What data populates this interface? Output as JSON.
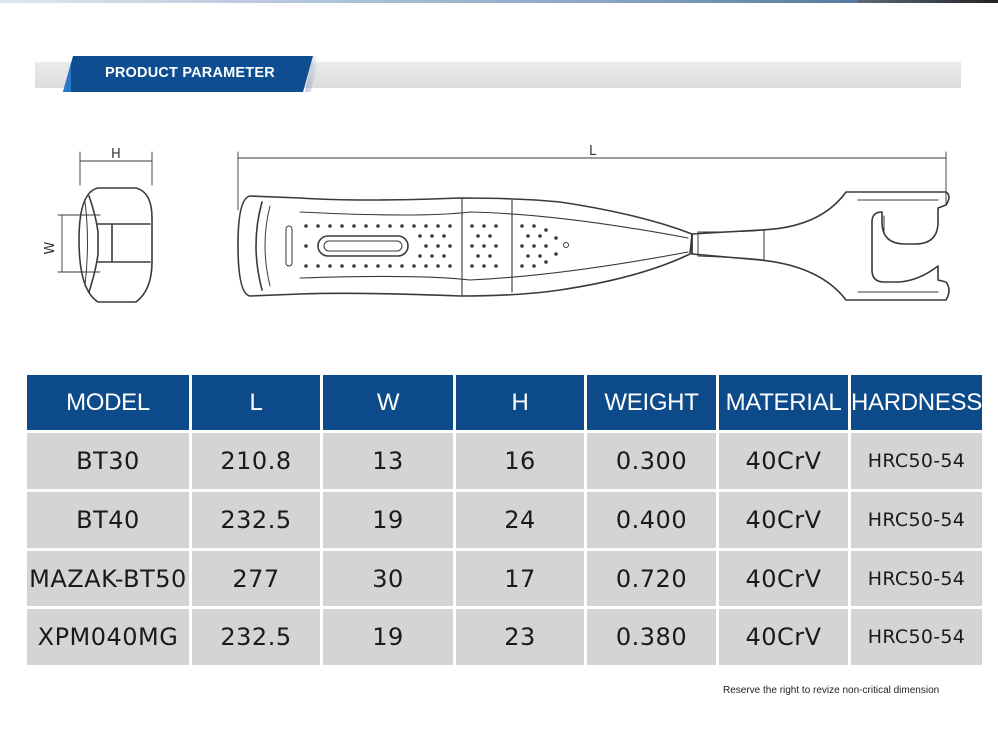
{
  "section": {
    "title": "PRODUCT PARAMETER"
  },
  "drawing": {
    "side_view_labels": {
      "h": "H",
      "w": "W"
    },
    "front_view_labels": {
      "l": "L"
    }
  },
  "table": {
    "headers": [
      "MODEL",
      "L",
      "W",
      "H",
      "WEIGHT",
      "MATERIAL",
      "HARDNESS"
    ],
    "rows": [
      [
        "BT30",
        "210.8",
        "13",
        "16",
        "0.300",
        "40CrV",
        "HRC50-54"
      ],
      [
        "BT40",
        "232.5",
        "19",
        "24",
        "0.400",
        "40CrV",
        "HRC50-54"
      ],
      [
        "MAZAK-BT50",
        "277",
        "30",
        "17",
        "0.720",
        "40CrV",
        "HRC50-54"
      ],
      [
        "XPM040MG",
        "232.5",
        "19",
        "23",
        "0.380",
        "40CrV",
        "HRC50-54"
      ]
    ]
  },
  "footnote": "Reserve the right to revize non-critical dimension",
  "colors": {
    "header_blue": "#0d4a8a",
    "cell_gray": "#d4d4d4",
    "accent_blue": "#2a77c8"
  }
}
